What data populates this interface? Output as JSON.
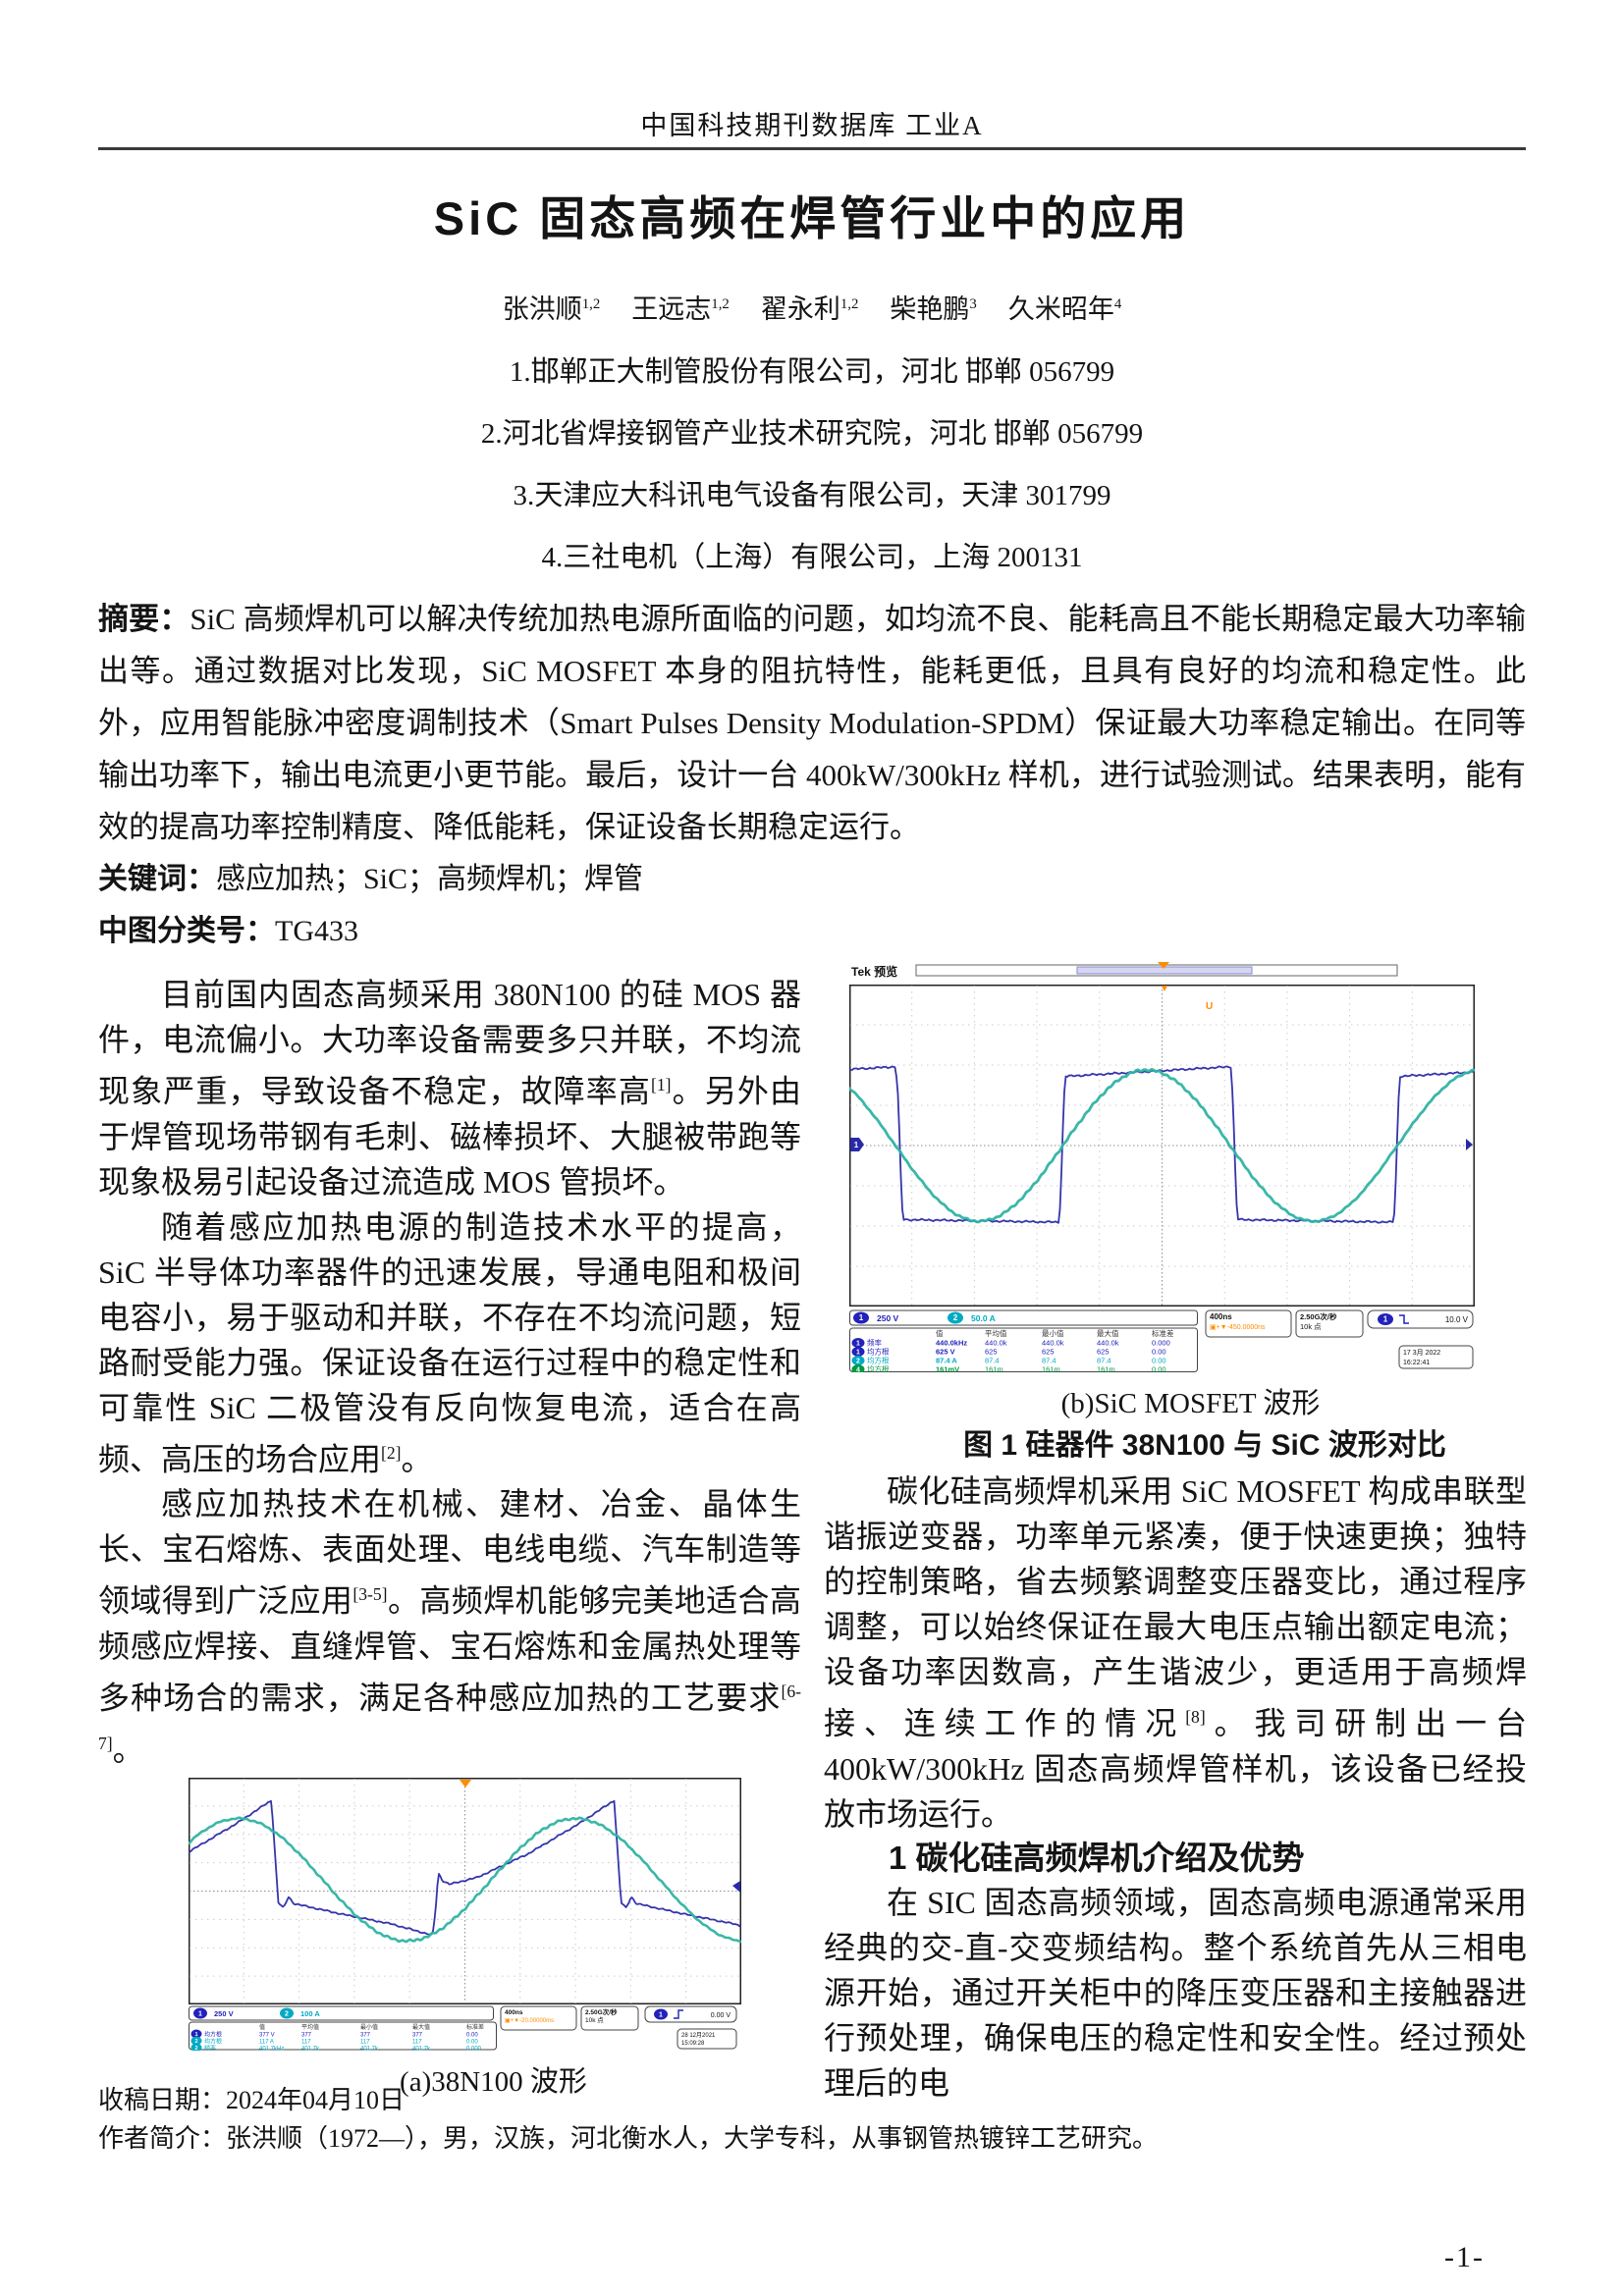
{
  "colors": {
    "trace_blue": "#2a2aa8",
    "trace_teal": "#2fb3a3",
    "readout_blue": "#2222bb",
    "readout_cyan": "#00aac4",
    "readout_green": "#009944",
    "orange": "#ff8c00",
    "rule": "#3a3a3a"
  },
  "header": {
    "text": "中国科技期刊数据库 工业A"
  },
  "title": "SiC 固态高频在焊管行业中的应用",
  "authors": [
    {
      "name": "张洪顺",
      "sup": "1,2"
    },
    {
      "name": "王远志",
      "sup": "1,2"
    },
    {
      "name": "翟永利",
      "sup": "1,2"
    },
    {
      "name": "柴艳鹏",
      "sup": "3"
    },
    {
      "name": "久米昭年",
      "sup": "4"
    }
  ],
  "affiliations": [
    "1.邯郸正大制管股份有限公司，河北 邯郸 056799",
    "2.河北省焊接钢管产业技术研究院，河北 邯郸 056799",
    "3.天津应大科讯电气设备有限公司，天津 301799",
    "4.三社电机（上海）有限公司，上海 200131"
  ],
  "abstract": {
    "label": "摘要：",
    "text": "SiC 高频焊机可以解决传统加热电源所面临的问题，如均流不良、能耗高且不能长期稳定最大功率输出等。通过数据对比发现，SiC MOSFET 本身的阻抗特性，能耗更低，且具有良好的均流和稳定性。此外，应用智能脉冲密度调制技术（Smart Pulses Density Modulation-SPDM）保证最大功率稳定输出。在同等输出功率下，输出电流更小更节能。最后，设计一台 400kW/300kHz 样机，进行试验测试。结果表明，能有效的提高功率控制精度、降低能耗，保证设备长期稳定运行。"
  },
  "keywords": {
    "label": "关键词：",
    "text": "感应加热；SiC；高频焊机；焊管"
  },
  "clc": {
    "label": "中图分类号：",
    "text": "TG433"
  },
  "left_column": {
    "paragraphs": [
      {
        "segments": [
          {
            "t": "目前国内固态高频采用 380N100 的硅 MOS 器件，电流偏小。大功率设备需要多只并联，不均流现象严重，导致设备不稳定，故障率高"
          },
          {
            "s": "[1]"
          },
          {
            "t": "。另外由于焊管现场带钢有毛刺、磁棒损坏、大腿被带跑等现象极易引起设备过流造成 MOS 管损坏。"
          }
        ]
      },
      {
        "segments": [
          {
            "t": "随着感应加热电源的制造技术水平的提高，SiC 半导体功率器件的迅速发展，导通电阻和极间电容小，易于驱动和并联，不存在不均流问题，短路耐受能力强。保证设备在运行过程中的稳定性和可靠性 SiC 二极管没有反向恢复电流，适合在高频、高压的场合应用"
          },
          {
            "s": "[2]"
          },
          {
            "t": "。"
          }
        ]
      },
      {
        "segments": [
          {
            "t": "感应加热技术在机械、建材、冶金、晶体生长、宝石熔炼、表面处理、电线电缆、汽车制造等领域得到广泛应用"
          },
          {
            "s": "[3-5]"
          },
          {
            "t": "。高频焊机能够完美地适合高频感应焊接、直缝焊管、宝石熔炼和金属热处理等多种场合的需求，满足各种感应加热的工艺要求"
          },
          {
            "s": "[6-7]"
          },
          {
            "t": "。"
          }
        ]
      }
    ]
  },
  "right_column": {
    "para1": {
      "segments": [
        {
          "t": "碳化硅高频焊机采用 SiC MOSFET 构成串联型谐振逆变器，功率单元紧凑，便于快速更换；独特的控制策略，省去频繁调整变压器变比，通过程序调整，可以始终保证在最大电压点输出额定电流；设备功率因数高，产生谐波少，更适用于高频焊接、连续工作的情况"
        },
        {
          "s": "[8]"
        },
        {
          "t": "。我司研制出一台 400kW/300kHz 固态高频焊管样机，该设备已经投放市场运行。"
        }
      ]
    },
    "section_heading": "1 碳化硅高频焊机介绍及优势",
    "para2": {
      "segments": [
        {
          "t": "在 SIC 固态高频领域，固态高频电源通常采用经典的交-直-交变频结构。整个系统首先从三相电源开始，通过开关柜中的降压变压器和主接触器进行预处理，确保电压的稳定性和安全性。经过预处理后的电"
        }
      ]
    }
  },
  "figure1": {
    "caption": "图 1  硅器件 38N100 与 SiC 波形对比",
    "scope_a": {
      "caption": "(a)38N100 波形",
      "ch1_badge": "1",
      "ch1_scale": "250 V",
      "ch2_badge": "2",
      "ch2_scale": "100 A",
      "table": {
        "headers": [
          "值",
          "平均值",
          "最小值",
          "最大值",
          "标准差"
        ],
        "rows": [
          {
            "ch": "1",
            "label": "均方根",
            "values": [
              "377 V",
              "377",
              "377",
              "377",
              "0.00"
            ]
          },
          {
            "ch": "2",
            "label": "均方根",
            "values": [
              "117 A",
              "117",
              "117",
              "117",
              "0.00"
            ]
          },
          {
            "ch": "2",
            "label": "频率",
            "values": [
              "401.7kHz",
              "401.7k",
              "401.7k",
              "401.7k",
              "0.000"
            ]
          }
        ]
      },
      "timebase": "400ns",
      "delay": "▣+▼-20.00000ms",
      "samplerate": "2.50G次/秒",
      "points": "10k 点",
      "trigger_badge": "1",
      "trigger_level": "0.00 V",
      "date": "28 12月2021",
      "time": "15:09:28",
      "waves": {
        "sine": {
          "period": 0.61,
          "phase_max": 0.09,
          "mid": 0.45,
          "amp": 0.27
        },
        "saw": {
          "period": 0.62,
          "peak_x": 0.15
        }
      }
    },
    "scope_b": {
      "caption": "(b)SiC MOSFET 波形",
      "tek_label": "Tek 预览",
      "marker_u": "U",
      "ch1_badge": "1",
      "ch1_scale": "250 V",
      "ch2_badge": "2",
      "ch2_scale": "50.0 A",
      "table": {
        "headers": [
          "值",
          "平均值",
          "最小值",
          "最大值",
          "标准差"
        ],
        "rows": [
          {
            "ch": "1",
            "label": "频率",
            "values": [
              "440.0kHz",
              "440.0k",
              "440.0k",
              "440.0k",
              "0.000"
            ]
          },
          {
            "ch": "1",
            "label": "均方根",
            "values": [
              "625 V",
              "625",
              "625",
              "625",
              "0.00"
            ]
          },
          {
            "ch": "2",
            "label": "均方根",
            "values": [
              "87.4 A",
              "87.4",
              "87.4",
              "87.4",
              "0.00"
            ]
          },
          {
            "ch": "4",
            "label": "均方根",
            "values": [
              "161mV",
              "161m",
              "161m",
              "161m",
              "0.00"
            ]
          }
        ]
      },
      "timebase": "400ns",
      "delay": "▣+▼-450.0000ns",
      "samplerate": "2.50G次/秒",
      "points": "10k 点",
      "trigger_badge": "1",
      "trigger_level": "10.0 V",
      "date": "17 3月 2022",
      "time": "16:22:41",
      "waves": {
        "sine": {
          "period": 0.535,
          "phase_max": 0.475,
          "mid": 0.5,
          "amp": 0.235
        },
        "square": {
          "period": 0.535,
          "fall_x": 0.075,
          "hi": 0.27,
          "lo": 0.73
        }
      }
    }
  },
  "footer": {
    "received": "收稿日期：2024年04月10日",
    "bio": "作者简介：张洪顺（1972—），男，汉族，河北衡水人，大学专科，从事钢管热镀锌工艺研究。",
    "page_number": "-1-"
  }
}
